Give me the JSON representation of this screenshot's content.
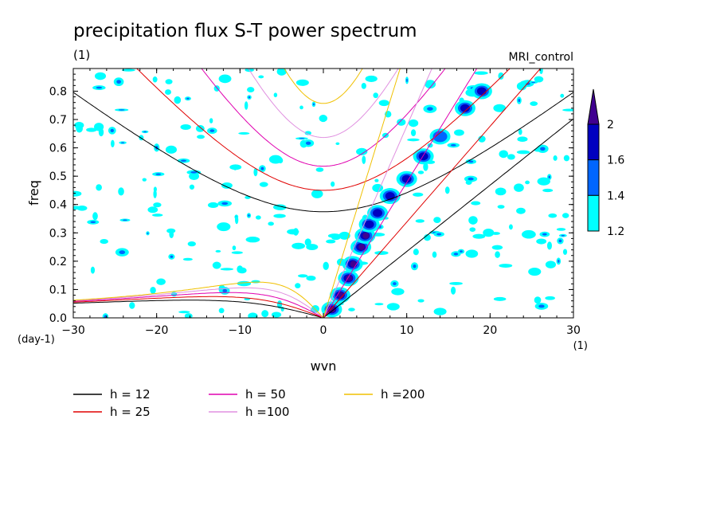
{
  "chart_data": {
    "type": "heatmap",
    "title": "precipitation flux S-T power spectrum",
    "subtitle_left": "(1)",
    "subtitle_right": "MRI_control",
    "xlabel": "wvn",
    "ylabel": "freq",
    "x_unit": "(1)",
    "y_unit": "(day-1)",
    "xlim": [
      -30,
      30
    ],
    "ylim": [
      0,
      0.88
    ],
    "x_ticks": [
      -30,
      -20,
      -10,
      0,
      10,
      20,
      30
    ],
    "x_tick_labels": [
      "−30",
      "−20",
      "−10",
      "0",
      "10",
      "20",
      "30"
    ],
    "y_ticks": [
      0,
      0.1,
      0.2,
      0.3,
      0.4,
      0.5,
      0.6,
      0.7,
      0.8
    ],
    "y_tick_labels": [
      "0.0",
      "0.1",
      "0.2",
      "0.3",
      "0.4",
      "0.5",
      "0.6",
      "0.7",
      "0.8"
    ],
    "colorbar": {
      "levels": [
        1.2,
        1.4,
        1.6,
        2
      ],
      "labels": [
        "1.2",
        "1.4",
        "1.6",
        "2"
      ],
      "colors": [
        "#00ffff",
        "#0066ff",
        "#0000c0",
        "#400090"
      ]
    },
    "dispersion_curves": [
      {
        "label": "h = 12",
        "h": 12,
        "color": "#000000"
      },
      {
        "label": "h = 25",
        "h": 25,
        "color": "#e00000"
      },
      {
        "label": "h = 50",
        "h": 50,
        "color": "#e000b0"
      },
      {
        "label": "h =100",
        "h": 100,
        "color": "#e090e0"
      },
      {
        "label": "h =200",
        "h": 200,
        "color": "#f0c000"
      }
    ],
    "kelvin_band": [
      {
        "k": 1,
        "f": 0.03,
        "level": 2
      },
      {
        "k": 2,
        "f": 0.08,
        "level": 2
      },
      {
        "k": 3,
        "f": 0.14,
        "level": 2
      },
      {
        "k": 3.5,
        "f": 0.19,
        "level": 2
      },
      {
        "k": 4.5,
        "f": 0.25,
        "level": 2
      },
      {
        "k": 5,
        "f": 0.29,
        "level": 2
      },
      {
        "k": 5.5,
        "f": 0.33,
        "level": 1.6
      },
      {
        "k": 6.5,
        "f": 0.37,
        "level": 1.6
      },
      {
        "k": 8,
        "f": 0.43,
        "level": 1.6
      },
      {
        "k": 10,
        "f": 0.49,
        "level": 1.6
      },
      {
        "k": 12,
        "f": 0.57,
        "level": 1.6
      },
      {
        "k": 14,
        "f": 0.64,
        "level": 1.4
      },
      {
        "k": 17,
        "f": 0.74,
        "level": 1.6
      },
      {
        "k": 19,
        "f": 0.8,
        "level": 1.6
      }
    ]
  }
}
